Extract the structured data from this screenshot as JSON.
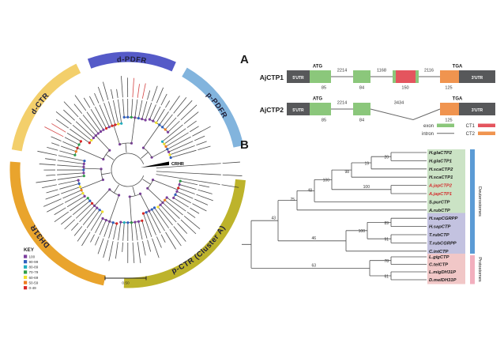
{
  "colors": {
    "exon": "#8BC77B",
    "ct1": "#E4555E",
    "ct2": "#F0944F",
    "utr": "#57585A",
    "hl_green": "#CBE3C5",
    "hl_purple": "#C3C2E0",
    "hl_pink": "#F1C7C7",
    "deut_bar": "#5B9BD5",
    "prot_bar": "#F2AFBE"
  },
  "panel_a": {
    "label": "A",
    "legend": {
      "exon": "exon",
      "intron": "intron",
      "ct1": "CT1",
      "ct2": "CT2"
    },
    "genes": [
      {
        "name": "AjCTP1",
        "start_codon": "ATG",
        "stop_codon": "TGA",
        "utr5": "5'UTR",
        "utr3": "3'UTR",
        "exon1_bp": "85",
        "intron1_bp": "2214",
        "exon2_bp": "84",
        "intron2_bp": "1168",
        "ct1_bp": "150",
        "intron3_bp": "2116",
        "ct2_bp": "125"
      },
      {
        "name": "AjCTP2",
        "start_codon": "ATG",
        "stop_codon": "TGA",
        "utr5": "5'UTR",
        "utr3": "3'UTR",
        "exon1_bp": "85",
        "intron1_bp": "2214",
        "exon2_bp": "84",
        "intron2_bp": "3434",
        "ct2_bp": "125"
      }
    ]
  },
  "panel_b": {
    "label": "B",
    "taxa": [
      {
        "name": "H.glaCTP2"
      },
      {
        "name": "H.glaCTP1"
      },
      {
        "name": "H.scaCTP2"
      },
      {
        "name": "H.scaCTP1"
      },
      {
        "name": "A.japCTP2",
        "highlight": "red"
      },
      {
        "name": "A.japCTP1",
        "highlight": "red"
      },
      {
        "name": "S.purCTP"
      },
      {
        "name": "A.rubCTP"
      },
      {
        "name": "H.sapCGRPP"
      },
      {
        "name": "H.sapCTP"
      },
      {
        "name": "T.rubCTP"
      },
      {
        "name": "T.rubCGRPP"
      },
      {
        "name": "C.intCTP"
      },
      {
        "name": "L.gigCTP"
      },
      {
        "name": "C.telCTP"
      },
      {
        "name": "L.migDH31P"
      },
      {
        "name": "D.melDH31P"
      }
    ],
    "bootstraps": [
      "20",
      "19",
      "98",
      "100",
      "100",
      "48",
      "75",
      "43",
      "89",
      "100",
      "91",
      "46",
      "78",
      "63",
      "61"
    ],
    "clade_bars": [
      {
        "label": "Deuterostomes"
      },
      {
        "label": "Protostomes"
      }
    ],
    "newick": "((((((((H.glaCTP2,H.glaCTP1)20,H.scaCTP2)19,H.scaCTP1)98,(A.japCTP2,A.japCTP1)100)100,S.purCTP)48,A.rubCTP)75,(((H.sapCGRPP,H.sapCTP)89,(T.rubCTP,T.rubCGRPP)91)100,C.intCTP)46)43,((L.gigCTP,C.telCTP)78,(L.migDH31P,D.melDH31P)61)63);"
  },
  "circular_tree": {
    "arcs": [
      {
        "label": "d-PDFR",
        "color": "#555AC8",
        "a1": 66,
        "a2": 110,
        "flip": true
      },
      {
        "label": "p-PDFR",
        "color": "#82B4DD",
        "a1": 12,
        "a2": 60,
        "flip": true
      },
      {
        "label": "d-CTR",
        "color": "#F3CF6B",
        "a1": 116,
        "a2": 170,
        "flip": true
      },
      {
        "label": "DH31R",
        "color": "#E9A42D",
        "a1": 176,
        "a2": 258,
        "flip": true
      },
      {
        "label": "p-CTR (Cluster A)",
        "color": "#BDB32B",
        "a1": 268,
        "a2": 355,
        "flip": false
      }
    ],
    "outgroup_label": "CRHR",
    "scale_label": "0.50",
    "key": {
      "title": "KEY",
      "entries": [
        {
          "label": "100",
          "color": "#7D3F9E"
        },
        {
          "label": "90-99",
          "color": "#2F5FBF"
        },
        {
          "label": "80-89",
          "color": "#21AFBF"
        },
        {
          "label": "70-79",
          "color": "#2E9E4A"
        },
        {
          "label": "60-69",
          "color": "#F2DF2B"
        },
        {
          "label": "50-59",
          "color": "#EE7C1E"
        },
        {
          "label": "0-49",
          "color": "#D92626"
        }
      ]
    }
  }
}
